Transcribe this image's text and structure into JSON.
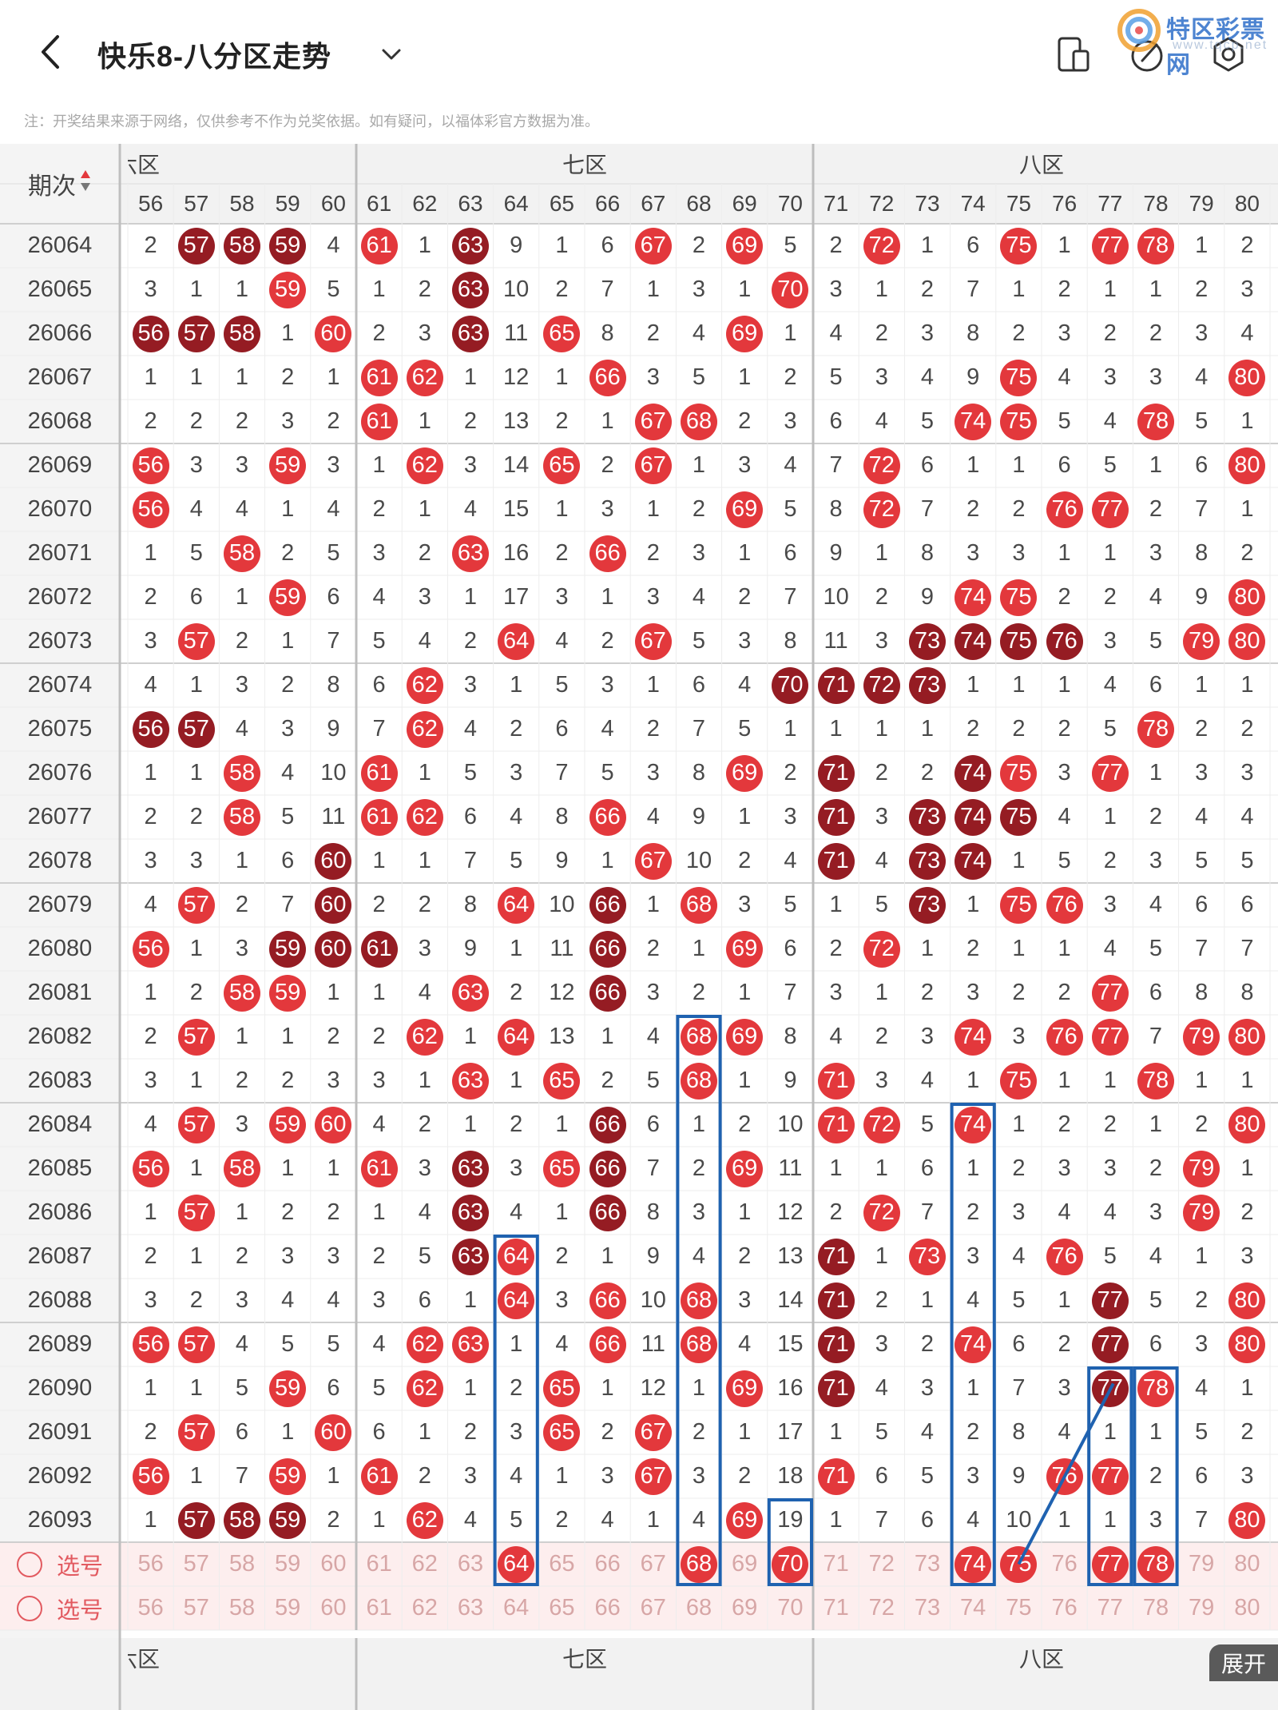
{
  "header": {
    "title": "快乐8-八分区走势",
    "back_icon": "chevron-left-icon",
    "dropdown_icon": "chevron-down-icon",
    "icons": [
      "tablet-phone-icon",
      "pen-icon",
      "settings-icon"
    ],
    "logo_text": "特区彩票网",
    "logo_url": "www.tqcp.net"
  },
  "notice": "注：开奖结果来源于网络，仅供参考不作为兑奖依据。如有疑问，以福体彩官方数据为准。",
  "table": {
    "issue_header": "期次",
    "sort_icon": "sort-arrows-icon",
    "zones": [
      {
        "label": "六区",
        "visible_label": "六区"
      },
      {
        "label": "七区"
      },
      {
        "label": "八区"
      }
    ],
    "columns": [
      56,
      57,
      58,
      59,
      60,
      61,
      62,
      63,
      64,
      65,
      66,
      67,
      68,
      69,
      70,
      71,
      72,
      73,
      74,
      75,
      76,
      77,
      78,
      79,
      80
    ],
    "rows": [
      {
        "issue": "26064",
        "cells": [
          "2",
          "d57",
          "d58",
          "d59",
          "4",
          "r61",
          "1",
          "d63",
          "9",
          "1",
          "6",
          "r67",
          "2",
          "r69",
          "5",
          "2",
          "r72",
          "1",
          "6",
          "r75",
          "1",
          "r77",
          "r78",
          "1",
          "2"
        ]
      },
      {
        "issue": "26065",
        "cells": [
          "3",
          "1",
          "1",
          "r59",
          "5",
          "1",
          "2",
          "d63",
          "10",
          "2",
          "7",
          "1",
          "3",
          "1",
          "r70",
          "3",
          "1",
          "2",
          "7",
          "1",
          "2",
          "1",
          "1",
          "2",
          "3"
        ]
      },
      {
        "issue": "26066",
        "cells": [
          "d56",
          "d57",
          "d58",
          "1",
          "r60",
          "2",
          "3",
          "d63",
          "11",
          "r65",
          "8",
          "2",
          "4",
          "r69",
          "1",
          "4",
          "2",
          "3",
          "8",
          "2",
          "3",
          "2",
          "2",
          "3",
          "4"
        ]
      },
      {
        "issue": "26067",
        "cells": [
          "1",
          "1",
          "1",
          "2",
          "1",
          "r61",
          "r62",
          "1",
          "12",
          "1",
          "r66",
          "3",
          "5",
          "1",
          "2",
          "5",
          "3",
          "4",
          "9",
          "r75",
          "4",
          "3",
          "3",
          "4",
          "r80"
        ]
      },
      {
        "issue": "26068",
        "cells": [
          "2",
          "2",
          "2",
          "3",
          "2",
          "r61",
          "1",
          "2",
          "13",
          "2",
          "1",
          "r67",
          "r68",
          "2",
          "3",
          "6",
          "4",
          "5",
          "r74",
          "r75",
          "5",
          "4",
          "r78",
          "5",
          "1"
        ]
      },
      {
        "issue": "26069",
        "cells": [
          "r56",
          "3",
          "3",
          "r59",
          "3",
          "1",
          "r62",
          "3",
          "14",
          "r65",
          "2",
          "r67",
          "1",
          "3",
          "4",
          "7",
          "r72",
          "6",
          "1",
          "1",
          "6",
          "5",
          "1",
          "6",
          "r80"
        ]
      },
      {
        "issue": "26070",
        "cells": [
          "r56",
          "4",
          "4",
          "1",
          "4",
          "2",
          "1",
          "4",
          "15",
          "1",
          "3",
          "1",
          "2",
          "r69",
          "5",
          "8",
          "r72",
          "7",
          "2",
          "2",
          "r76",
          "r77",
          "2",
          "7",
          "1"
        ]
      },
      {
        "issue": "26071",
        "cells": [
          "1",
          "5",
          "r58",
          "2",
          "5",
          "3",
          "2",
          "r63",
          "16",
          "2",
          "r66",
          "2",
          "3",
          "1",
          "6",
          "9",
          "1",
          "8",
          "3",
          "3",
          "1",
          "1",
          "3",
          "8",
          "2"
        ]
      },
      {
        "issue": "26072",
        "cells": [
          "2",
          "6",
          "1",
          "r59",
          "6",
          "4",
          "3",
          "1",
          "17",
          "3",
          "1",
          "3",
          "4",
          "2",
          "7",
          "10",
          "2",
          "9",
          "r74",
          "r75",
          "2",
          "2",
          "4",
          "9",
          "r80"
        ]
      },
      {
        "issue": "26073",
        "cells": [
          "3",
          "r57",
          "2",
          "1",
          "7",
          "5",
          "4",
          "2",
          "r64",
          "4",
          "2",
          "r67",
          "5",
          "3",
          "8",
          "11",
          "3",
          "d73",
          "d74",
          "d75",
          "d76",
          "3",
          "5",
          "r79",
          "r80"
        ]
      },
      {
        "issue": "26074",
        "cells": [
          "4",
          "1",
          "3",
          "2",
          "8",
          "6",
          "r62",
          "3",
          "1",
          "5",
          "3",
          "1",
          "6",
          "4",
          "d70",
          "d71",
          "d72",
          "d73",
          "1",
          "1",
          "1",
          "4",
          "6",
          "1",
          "1"
        ]
      },
      {
        "issue": "26075",
        "cells": [
          "d56",
          "d57",
          "4",
          "3",
          "9",
          "7",
          "r62",
          "4",
          "2",
          "6",
          "4",
          "2",
          "7",
          "5",
          "1",
          "1",
          "1",
          "1",
          "2",
          "2",
          "2",
          "5",
          "r78",
          "2",
          "2"
        ]
      },
      {
        "issue": "26076",
        "cells": [
          "1",
          "1",
          "r58",
          "4",
          "10",
          "r61",
          "1",
          "5",
          "3",
          "7",
          "5",
          "3",
          "8",
          "r69",
          "2",
          "d71",
          "2",
          "2",
          "d74",
          "r75",
          "3",
          "r77",
          "1",
          "3",
          "3"
        ]
      },
      {
        "issue": "26077",
        "cells": [
          "2",
          "2",
          "r58",
          "5",
          "11",
          "r61",
          "r62",
          "6",
          "4",
          "8",
          "r66",
          "4",
          "9",
          "1",
          "3",
          "d71",
          "3",
          "d73",
          "d74",
          "d75",
          "4",
          "1",
          "2",
          "4",
          "4"
        ]
      },
      {
        "issue": "26078",
        "cells": [
          "3",
          "3",
          "1",
          "6",
          "d60",
          "1",
          "1",
          "7",
          "5",
          "9",
          "1",
          "r67",
          "10",
          "2",
          "4",
          "d71",
          "4",
          "d73",
          "d74",
          "1",
          "5",
          "2",
          "3",
          "5",
          "5"
        ]
      },
      {
        "issue": "26079",
        "cells": [
          "4",
          "r57",
          "2",
          "7",
          "d60",
          "2",
          "2",
          "8",
          "r64",
          "10",
          "d66",
          "1",
          "r68",
          "3",
          "5",
          "1",
          "5",
          "d73",
          "1",
          "r75",
          "r76",
          "3",
          "4",
          "6",
          "6"
        ]
      },
      {
        "issue": "26080",
        "cells": [
          "r56",
          "1",
          "3",
          "d59",
          "d60",
          "d61",
          "3",
          "9",
          "1",
          "11",
          "d66",
          "2",
          "1",
          "r69",
          "6",
          "2",
          "r72",
          "1",
          "2",
          "1",
          "1",
          "4",
          "5",
          "7",
          "7"
        ]
      },
      {
        "issue": "26081",
        "cells": [
          "1",
          "2",
          "r58",
          "r59",
          "1",
          "1",
          "4",
          "r63",
          "2",
          "12",
          "d66",
          "3",
          "2",
          "1",
          "7",
          "3",
          "1",
          "2",
          "3",
          "2",
          "2",
          "r77",
          "6",
          "8",
          "8"
        ]
      },
      {
        "issue": "26082",
        "cells": [
          "2",
          "r57",
          "1",
          "1",
          "2",
          "2",
          "r62",
          "1",
          "r64",
          "13",
          "1",
          "4",
          "r68",
          "r69",
          "8",
          "4",
          "2",
          "3",
          "r74",
          "3",
          "r76",
          "r77",
          "7",
          "r79",
          "r80"
        ]
      },
      {
        "issue": "26083",
        "cells": [
          "3",
          "1",
          "2",
          "2",
          "3",
          "3",
          "1",
          "r63",
          "1",
          "r65",
          "2",
          "5",
          "r68",
          "1",
          "9",
          "r71",
          "3",
          "4",
          "1",
          "r75",
          "1",
          "1",
          "r78",
          "1",
          "1"
        ]
      },
      {
        "issue": "26084",
        "cells": [
          "4",
          "r57",
          "3",
          "r59",
          "r60",
          "4",
          "2",
          "1",
          "2",
          "1",
          "d66",
          "6",
          "1",
          "2",
          "10",
          "r71",
          "r72",
          "5",
          "r74",
          "1",
          "2",
          "2",
          "1",
          "2",
          "r80"
        ]
      },
      {
        "issue": "26085",
        "cells": [
          "r56",
          "1",
          "r58",
          "1",
          "1",
          "r61",
          "3",
          "d63",
          "3",
          "r65",
          "d66",
          "7",
          "2",
          "r69",
          "11",
          "1",
          "1",
          "6",
          "1",
          "2",
          "3",
          "3",
          "2",
          "r79",
          "1"
        ]
      },
      {
        "issue": "26086",
        "cells": [
          "1",
          "r57",
          "1",
          "2",
          "2",
          "1",
          "4",
          "d63",
          "4",
          "1",
          "d66",
          "8",
          "3",
          "1",
          "12",
          "2",
          "r72",
          "7",
          "2",
          "3",
          "4",
          "4",
          "3",
          "r79",
          "2"
        ]
      },
      {
        "issue": "26087",
        "cells": [
          "2",
          "1",
          "2",
          "3",
          "3",
          "2",
          "5",
          "d63",
          "r64",
          "2",
          "1",
          "9",
          "4",
          "2",
          "13",
          "d71",
          "1",
          "r73",
          "3",
          "4",
          "r76",
          "5",
          "4",
          "1",
          "3"
        ]
      },
      {
        "issue": "26088",
        "cells": [
          "3",
          "2",
          "3",
          "4",
          "4",
          "3",
          "6",
          "1",
          "r64",
          "3",
          "r66",
          "10",
          "r68",
          "3",
          "14",
          "d71",
          "2",
          "1",
          "4",
          "5",
          "1",
          "d77",
          "5",
          "2",
          "r80"
        ]
      },
      {
        "issue": "26089",
        "cells": [
          "r56",
          "r57",
          "4",
          "5",
          "5",
          "4",
          "r62",
          "r63",
          "1",
          "4",
          "r66",
          "11",
          "r68",
          "4",
          "15",
          "d71",
          "3",
          "2",
          "r74",
          "6",
          "2",
          "d77",
          "6",
          "3",
          "r80"
        ]
      },
      {
        "issue": "26090",
        "cells": [
          "1",
          "1",
          "5",
          "r59",
          "6",
          "5",
          "r62",
          "1",
          "2",
          "r65",
          "1",
          "12",
          "1",
          "r69",
          "16",
          "d71",
          "4",
          "3",
          "1",
          "7",
          "3",
          "d77",
          "r78",
          "4",
          "1"
        ]
      },
      {
        "issue": "26091",
        "cells": [
          "2",
          "r57",
          "6",
          "1",
          "r60",
          "6",
          "1",
          "2",
          "3",
          "r65",
          "2",
          "r67",
          "2",
          "1",
          "17",
          "1",
          "5",
          "4",
          "2",
          "8",
          "4",
          "1",
          "1",
          "5",
          "2"
        ]
      },
      {
        "issue": "26092",
        "cells": [
          "r56",
          "1",
          "7",
          "r59",
          "1",
          "r61",
          "2",
          "3",
          "4",
          "1",
          "3",
          "r67",
          "3",
          "2",
          "18",
          "r71",
          "6",
          "5",
          "3",
          "9",
          "r76",
          "r77",
          "2",
          "6",
          "3"
        ]
      },
      {
        "issue": "26093",
        "cells": [
          "1",
          "d57",
          "d58",
          "d59",
          "2",
          "1",
          "r62",
          "4",
          "5",
          "2",
          "4",
          "1",
          "4",
          "r69",
          "19",
          "1",
          "7",
          "6",
          "4",
          "10",
          "1",
          "1",
          "3",
          "7",
          "r80"
        ]
      }
    ],
    "select_label": "选号",
    "select_rows": [
      {
        "selected": [
          "r64",
          "r68",
          "r70",
          "r74",
          "r75",
          "r77",
          "r78"
        ]
      },
      {
        "selected": []
      }
    ],
    "expand_label": "展开"
  },
  "colors": {
    "ball_red": "#e3383c",
    "ball_dark": "#951c23",
    "highlight_box": "#1f62b0",
    "select_row_bg": "#fdeeee"
  }
}
